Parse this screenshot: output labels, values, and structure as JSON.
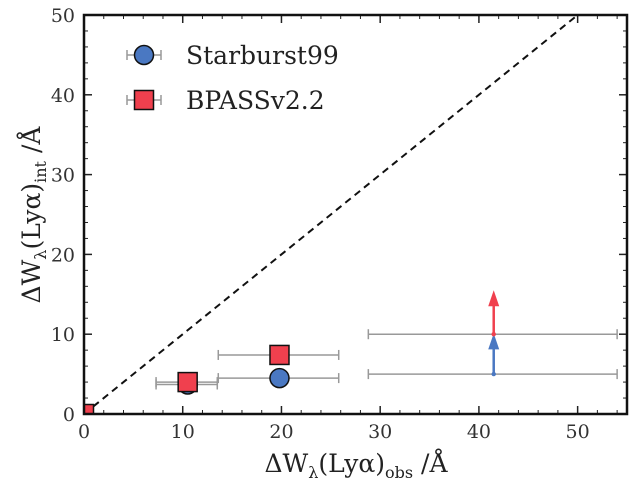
{
  "chart_data": {
    "type": "scatter",
    "xlabel": "ΔW_λ(Lyα)_obs /Å",
    "ylabel": "ΔW_λ(Lyα)_int /Å",
    "xlim": [
      0,
      55
    ],
    "ylim": [
      0,
      50
    ],
    "xticks": [
      0,
      10,
      20,
      30,
      40,
      50
    ],
    "yticks": [
      0,
      10,
      20,
      30,
      40,
      50
    ],
    "grid": false,
    "legend": "top-left",
    "reference_line": {
      "type": "one-to-one",
      "style": "dashed",
      "color": "#111111"
    },
    "series": [
      {
        "name": "Starburst99",
        "marker": "circle",
        "color": "#4a78c2",
        "points": [
          {
            "x": 10.5,
            "y": 3.7,
            "xerr": [
              3.2,
              3.0
            ]
          },
          {
            "x": 19.8,
            "y": 4.5,
            "xerr": [
              6.2,
              6.0
            ]
          },
          {
            "x": 41.5,
            "y": 5.0,
            "xerr": [
              12.7,
              12.5
            ],
            "lower_limit": 9.6
          }
        ]
      },
      {
        "name": "BPASSv2.2",
        "marker": "square",
        "color": "#f0404e",
        "points": [
          {
            "x": 0.0,
            "y": 0.0
          },
          {
            "x": 10.5,
            "y": 4.0,
            "xerr": [
              3.2,
              3.0
            ]
          },
          {
            "x": 19.8,
            "y": 7.4,
            "xerr": [
              6.2,
              6.0
            ]
          },
          {
            "x": 41.5,
            "y": 10.0,
            "xerr": [
              12.7,
              12.5
            ],
            "lower_limit": 15.0
          }
        ]
      }
    ]
  }
}
